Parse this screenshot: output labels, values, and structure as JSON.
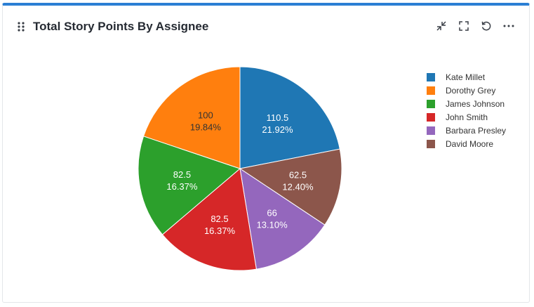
{
  "header": {
    "title": "Total Story Points By Assignee",
    "icons": [
      "drag-handle-icon",
      "minimize-icon",
      "fullscreen-icon",
      "refresh-icon",
      "more-icon"
    ]
  },
  "chart_data": {
    "type": "pie",
    "title": "Total Story Points By Assignee",
    "legend_position": "right",
    "start_angle_deg": 0,
    "direction": "clockwise",
    "slices": [
      {
        "name": "Kate Millet",
        "value": 110.5,
        "label": "110.5",
        "percent": "21.92%",
        "color": "#1f77b4"
      },
      {
        "name": "David Moore",
        "value": 62.5,
        "label": "62.5",
        "percent": "12.40%",
        "color": "#8c564b"
      },
      {
        "name": "Barbara Presley",
        "value": 66,
        "label": "66",
        "percent": "13.10%",
        "color": "#9467bd"
      },
      {
        "name": "John Smith",
        "value": 82.5,
        "label": "82.5",
        "percent": "16.37%",
        "color": "#d62728"
      },
      {
        "name": "James Johnson",
        "value": 82.5,
        "label": "82.5",
        "percent": "16.37%",
        "color": "#2ca02c"
      },
      {
        "name": "Dorothy Grey",
        "value": 100,
        "label": "100",
        "percent": "19.84%",
        "color": "#ff7f0e"
      }
    ],
    "legend": [
      "Kate Millet",
      "Dorothy Grey",
      "James Johnson",
      "John Smith",
      "Barbara Presley",
      "David Moore"
    ],
    "label_colors": {
      "Dorothy Grey": "#333333",
      "default": "#ffffff"
    }
  }
}
